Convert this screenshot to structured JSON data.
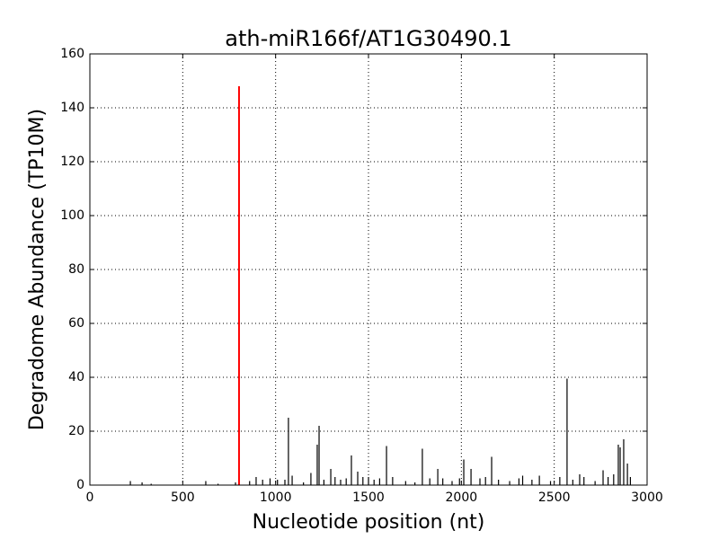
{
  "chart_data": {
    "type": "stem",
    "title": "ath-miR166f/AT1G30490.1",
    "x_label": "Nucleotide position (nt)",
    "y_label": "Degradome Abundance (TP10M)",
    "xlim": [
      0,
      3000
    ],
    "ylim": [
      0,
      160
    ],
    "xticks": [
      0,
      500,
      1000,
      1500,
      2000,
      2500,
      3000
    ],
    "yticks": [
      0,
      20,
      40,
      60,
      80,
      100,
      120,
      140,
      160
    ],
    "grid": true,
    "series": [
      {
        "color": "#000000",
        "x": [
          218,
          281,
          330,
          624,
          690,
          784,
          860,
          895,
          930,
          970,
          1010,
          1050,
          1069,
          1089,
          1150,
          1190,
          1224,
          1234,
          1260,
          1297,
          1320,
          1350,
          1380,
          1408,
          1442,
          1470,
          1500,
          1530,
          1560,
          1597,
          1630,
          1700,
          1750,
          1790,
          1830,
          1873,
          1900,
          1950,
          1990,
          2013,
          2052,
          2100,
          2130,
          2163,
          2200,
          2260,
          2310,
          2330,
          2380,
          2420,
          2480,
          2530,
          2569,
          2600,
          2637,
          2660,
          2720,
          2763,
          2790,
          2820,
          2845,
          2855,
          2874,
          2894,
          2910
        ],
        "values": [
          1.5,
          1,
          0.5,
          1.5,
          0.5,
          1,
          1.5,
          3,
          2,
          2.5,
          2,
          2,
          25,
          3.5,
          1,
          4.5,
          15,
          22,
          2,
          6,
          3,
          2,
          2.5,
          11,
          5,
          3,
          3,
          2,
          2.5,
          14.5,
          3,
          1.5,
          1,
          13.5,
          2.5,
          6,
          2.5,
          1.5,
          2.5,
          9.5,
          6,
          2.5,
          3,
          10.5,
          2,
          1.5,
          2.5,
          3.5,
          2,
          3.5,
          1.5,
          3,
          39.5,
          2,
          4,
          3,
          1.5,
          5.5,
          3,
          4,
          15,
          14,
          17,
          8,
          3
        ]
      },
      {
        "color": "#ff0000",
        "x": [
          803
        ],
        "values": [
          148
        ]
      }
    ]
  }
}
